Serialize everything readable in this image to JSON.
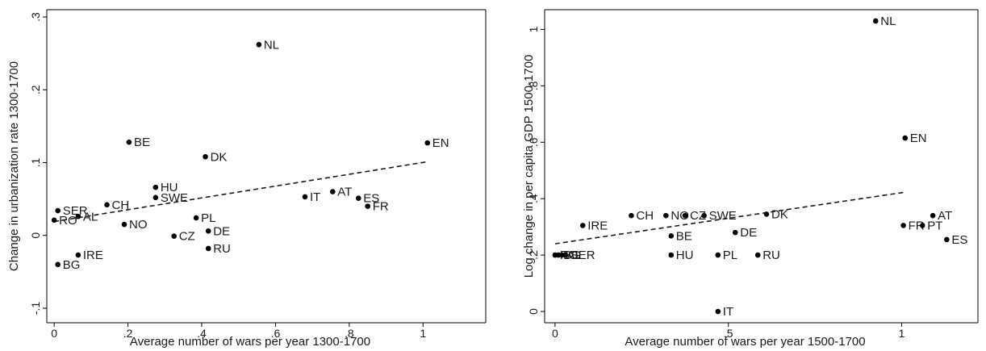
{
  "chart_data": [
    {
      "type": "scatter",
      "title": "",
      "xlabel": "Average number of wars per year 1300-1700",
      "ylabel": "Change in urbanization rate 1300-1700",
      "xlim": [
        -0.02,
        1.17
      ],
      "ylim": [
        -0.12,
        0.31
      ],
      "xticks": [
        0,
        0.2,
        0.4,
        0.6,
        0.8,
        1
      ],
      "xtick_labels": [
        "0",
        ".2",
        ".4",
        ".6",
        ".8",
        "1"
      ],
      "yticks": [
        -0.1,
        0,
        0.1,
        0.2,
        0.3
      ],
      "ytick_labels": [
        "-.1",
        "0",
        ".1",
        ".2",
        ".3"
      ],
      "grid": false,
      "fit_line": {
        "x": [
          0,
          1.01
        ],
        "y": [
          0.019,
          0.101
        ]
      },
      "points": [
        {
          "label": "NL",
          "x": 0.555,
          "y": 0.262
        },
        {
          "label": "BE",
          "x": 0.203,
          "y": 0.128
        },
        {
          "label": "EN",
          "x": 1.012,
          "y": 0.127
        },
        {
          "label": "DK",
          "x": 0.41,
          "y": 0.108
        },
        {
          "label": "HU",
          "x": 0.275,
          "y": 0.066
        },
        {
          "label": "SWE",
          "x": 0.275,
          "y": 0.052
        },
        {
          "label": "CH",
          "x": 0.143,
          "y": 0.042
        },
        {
          "label": "SER",
          "x": 0.01,
          "y": 0.034
        },
        {
          "label": "AL",
          "x": 0.065,
          "y": 0.026
        },
        {
          "label": "RO",
          "x": 0.0,
          "y": 0.021
        },
        {
          "label": "NO",
          "x": 0.19,
          "y": 0.015
        },
        {
          "label": "PL",
          "x": 0.385,
          "y": 0.024
        },
        {
          "label": "CZ",
          "x": 0.325,
          "y": -0.001
        },
        {
          "label": "DE",
          "x": 0.418,
          "y": 0.006
        },
        {
          "label": "RU",
          "x": 0.418,
          "y": -0.018
        },
        {
          "label": "IT",
          "x": 0.68,
          "y": 0.053
        },
        {
          "label": "AT",
          "x": 0.755,
          "y": 0.06
        },
        {
          "label": "ES",
          "x": 0.825,
          "y": 0.051
        },
        {
          "label": "FR",
          "x": 0.85,
          "y": 0.04
        },
        {
          "label": "IRE",
          "x": 0.065,
          "y": -0.027
        },
        {
          "label": "BG",
          "x": 0.01,
          "y": -0.04
        }
      ]
    },
    {
      "type": "scatter",
      "title": "",
      "xlabel": "Average number of wars per year 1500-1700",
      "ylabel": "Log change in per capita GDP 1500-1700",
      "xlim": [
        -0.03,
        1.22
      ],
      "ylim": [
        -0.04,
        1.07
      ],
      "xticks": [
        0,
        0.5,
        1
      ],
      "xtick_labels": [
        "0",
        ".5",
        "1"
      ],
      "yticks": [
        0,
        0.2,
        0.4,
        0.6,
        0.8,
        1
      ],
      "ytick_labels": [
        "0",
        ".2",
        ".4",
        ".6",
        ".8",
        "1"
      ],
      "grid": false,
      "fit_line": {
        "x": [
          0,
          1.01
        ],
        "y": [
          0.24,
          0.423
        ]
      },
      "points": [
        {
          "label": "NL",
          "x": 0.925,
          "y": 1.03
        },
        {
          "label": "EN",
          "x": 1.01,
          "y": 0.615
        },
        {
          "label": "CH",
          "x": 0.22,
          "y": 0.34
        },
        {
          "label": "NO",
          "x": 0.32,
          "y": 0.34
        },
        {
          "label": "CZ",
          "x": 0.375,
          "y": 0.34
        },
        {
          "label": "SWE",
          "x": 0.43,
          "y": 0.34
        },
        {
          "label": "DK",
          "x": 0.61,
          "y": 0.345
        },
        {
          "label": "AT",
          "x": 1.09,
          "y": 0.34
        },
        {
          "label": "IRE",
          "x": 0.08,
          "y": 0.305
        },
        {
          "label": "FR",
          "x": 1.005,
          "y": 0.305
        },
        {
          "label": "PT",
          "x": 1.06,
          "y": 0.305
        },
        {
          "label": "DE",
          "x": 0.52,
          "y": 0.28
        },
        {
          "label": "BE",
          "x": 0.335,
          "y": 0.268
        },
        {
          "label": "ES",
          "x": 1.13,
          "y": 0.255
        },
        {
          "label": "SER",
          "x": 0.03,
          "y": 0.2
        },
        {
          "label": "RO",
          "x": 0.0,
          "y": 0.2
        },
        {
          "label": "BG",
          "x": 0.01,
          "y": 0.2
        },
        {
          "label": "AL",
          "x": 0.02,
          "y": 0.2
        },
        {
          "label": "HU",
          "x": 0.335,
          "y": 0.2
        },
        {
          "label": "PL",
          "x": 0.47,
          "y": 0.2
        },
        {
          "label": "RU",
          "x": 0.585,
          "y": 0.2
        },
        {
          "label": "IT",
          "x": 0.47,
          "y": 0.0
        }
      ]
    }
  ]
}
